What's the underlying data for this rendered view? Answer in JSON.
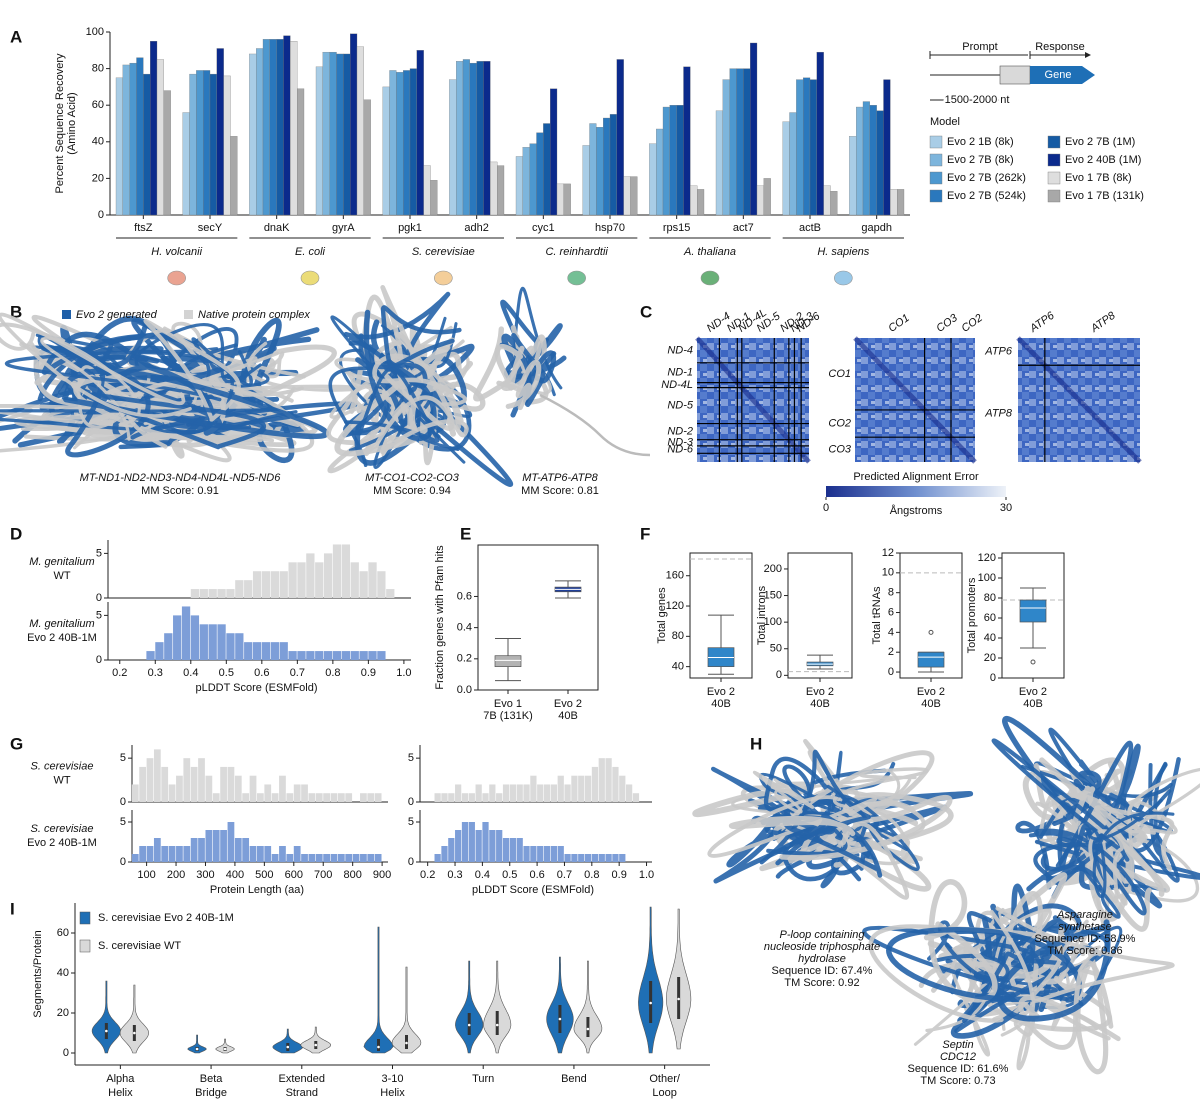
{
  "panel_labels": [
    "A",
    "B",
    "C",
    "D",
    "E",
    "F",
    "G",
    "H",
    "I"
  ],
  "panel_b": {
    "legend": [
      "Evo 2 generated",
      "Native protein complex"
    ],
    "structures": [
      {
        "name": "MT-ND1-ND2-ND3-ND4-ND4L-ND5-ND6",
        "score": "MM Score: 0.91"
      },
      {
        "name": "MT-CO1-CO2-CO3",
        "score": "MM Score: 0.94"
      },
      {
        "name": "MT-ATP6-ATP8",
        "score": "MM Score: 0.81"
      }
    ]
  },
  "panel_c": {
    "maps": [
      {
        "top": [
          "ND-4",
          "ND-1",
          "ND-4L",
          "ND-5",
          "ND-2",
          "ND-3",
          "ND-6"
        ],
        "left": [
          "ND-4",
          "ND-1",
          "ND-4L",
          "ND-5",
          "ND-2",
          "ND-3",
          "ND-6"
        ]
      },
      {
        "top": [
          "CO1",
          "CO3",
          "CO2"
        ],
        "left": [
          "CO1",
          "CO2",
          "CO3"
        ]
      },
      {
        "top": [
          "ATP6",
          "ATP8"
        ],
        "left": [
          "ATP6",
          "ATP8"
        ]
      }
    ]
  },
  "panel_i": {
    "structures": [
      {
        "name": "P-loop containing\nnucleoside triphosphate\nhydrolase",
        "sequence_id": "Sequence ID: 67.4%",
        "score": "TM Score: 0.92"
      },
      {
        "name": "Asparagine\nsynthetase",
        "sequence_id": "Sequence ID: 58.9%",
        "score": "TM Score: 0.86"
      },
      {
        "name": "Septin\nCDC12",
        "sequence_id": "Sequence ID: 61.6%",
        "score": "TM Score: 0.73"
      }
    ]
  },
  "chart_data": [
    {
      "type": "bar",
      "ylabel": "Percent Sequence Recovery\n(Amino Acid)",
      "categories": [
        "ftsZ",
        "secY",
        "dnaK",
        "gyrA",
        "pgk1",
        "adh2",
        "cyc1",
        "hsp70",
        "rps15",
        "act7",
        "actB",
        "gapdh"
      ],
      "groups": [
        "H. volcanii",
        "E. coli",
        "S. cerevisiae",
        "C. reinhardtii",
        "A. thaliana",
        "H. sapiens"
      ],
      "ylim": [
        0,
        100
      ],
      "yticks": [
        0,
        20,
        40,
        60,
        80,
        100
      ],
      "legend_title": "Model",
      "schematic": {
        "prompt": "Prompt",
        "response": "Response",
        "gene": "Gene",
        "length": "1500-2000 nt"
      },
      "series": [
        {
          "name": "Evo 2 1B (8k)",
          "color": "#a9cde6",
          "values": [
            75,
            56,
            88,
            81,
            70,
            74,
            32,
            38,
            39,
            57,
            51,
            43
          ]
        },
        {
          "name": "Evo 2 7B (8k)",
          "color": "#7db5dc",
          "values": [
            82,
            77,
            91,
            89,
            79,
            84,
            37,
            50,
            47,
            74,
            56,
            59
          ]
        },
        {
          "name": "Evo 2 7B (262k)",
          "color": "#4d98cf",
          "values": [
            83,
            79,
            96,
            89,
            78,
            85,
            39,
            48,
            59,
            80,
            74,
            62
          ]
        },
        {
          "name": "Evo 2 7B (524k)",
          "color": "#2a78bd",
          "values": [
            86,
            79,
            96,
            88,
            79,
            83,
            45,
            53,
            60,
            80,
            75,
            60
          ]
        },
        {
          "name": "Evo 2 7B (1M)",
          "color": "#165ba4",
          "values": [
            77,
            77,
            96,
            88,
            80,
            84,
            50,
            55,
            60,
            80,
            74,
            57
          ]
        },
        {
          "name": "Evo 2 40B (1M)",
          "color": "#0b2a8c",
          "values": [
            95,
            91,
            98,
            99,
            90,
            84,
            69,
            85,
            81,
            94,
            89,
            74
          ]
        },
        {
          "name": "Evo 1 7B (8k)",
          "color": "#dedede",
          "values": [
            85,
            76,
            95,
            92,
            27,
            29,
            17,
            21,
            16,
            16,
            16,
            14
          ]
        },
        {
          "name": "Evo 1  7B (131k)",
          "color": "#a8a8a8",
          "values": [
            68,
            43,
            69,
            63,
            19,
            27,
            17,
            21,
            14,
            20,
            13,
            14
          ]
        }
      ]
    },
    {
      "type": "histogram",
      "label": "M. genitalium\nWT",
      "color": "#dadada",
      "bins": [
        0.25,
        0.275,
        0.3,
        0.325,
        0.35,
        0.375,
        0.4,
        0.425,
        0.45,
        0.475,
        0.5,
        0.525,
        0.55,
        0.575,
        0.6,
        0.625,
        0.65,
        0.675,
        0.7,
        0.725,
        0.75,
        0.775,
        0.8,
        0.825,
        0.85,
        0.875,
        0.9,
        0.925,
        0.95,
        0.975
      ],
      "values": [
        0,
        0,
        0,
        0,
        0,
        0,
        1,
        1,
        1,
        1,
        1,
        2,
        2,
        3,
        3,
        3,
        3,
        4,
        4,
        5,
        4,
        5,
        6,
        6,
        4,
        3,
        4,
        3,
        1
      ],
      "xlim": [
        0.15,
        1.02
      ],
      "ylim": [
        0,
        6.5
      ],
      "yticks": [
        0,
        5
      ]
    },
    {
      "type": "histogram",
      "label": "M. genitalium\nEvo 2 40B-1M",
      "color": "#7d9ed8",
      "bins": [
        0.25,
        0.275,
        0.3,
        0.325,
        0.35,
        0.375,
        0.4,
        0.425,
        0.45,
        0.475,
        0.5,
        0.525,
        0.55,
        0.575,
        0.6,
        0.625,
        0.65,
        0.675,
        0.7,
        0.725,
        0.75,
        0.775,
        0.8,
        0.825,
        0.85,
        0.875,
        0.9,
        0.925,
        0.95,
        0.975
      ],
      "values": [
        0,
        1,
        2,
        3,
        5,
        6,
        5,
        4,
        4,
        4,
        3,
        3,
        2,
        2,
        2,
        2,
        2,
        1,
        1,
        1,
        1,
        1,
        1,
        1,
        1,
        1,
        1,
        1,
        0
      ],
      "xlim": [
        0.15,
        1.02
      ],
      "ylim": [
        0,
        6.5
      ],
      "yticks": [
        0,
        5
      ],
      "xticks": [
        0.2,
        0.3,
        0.4,
        0.5,
        0.6,
        0.7,
        0.8,
        0.9,
        {
          "value": 1,
          "label": "1.0"
        }
      ],
      "xlabel": "pLDDT Score (ESMFold)"
    },
    {
      "type": "box",
      "ylabel": "Fraction genes with Pfam hits",
      "categories": [
        "Evo 1\n7B (131K)",
        "Evo 2\n40B"
      ],
      "colors": [
        "#b3b3b3",
        "#1f3f9a"
      ],
      "ylim": [
        0,
        0.93
      ],
      "yticks": [
        {
          "value": 0,
          "label": "0.0"
        },
        0.2,
        0.4,
        0.6
      ],
      "boxes": [
        {
          "whislo": 0.06,
          "q1": 0.15,
          "med": 0.19,
          "q3": 0.22,
          "whishi": 0.33,
          "outliers": []
        },
        {
          "whislo": 0.59,
          "q1": 0.63,
          "med": 0.645,
          "q3": 0.66,
          "whishi": 0.7,
          "outliers": []
        }
      ]
    },
    {
      "type": "box",
      "ylabel": "Total genes",
      "categories": [
        "Evo 2\n40B"
      ],
      "colors": [
        "#2f86c9"
      ],
      "ylim": [
        25,
        190
      ],
      "yticks": [
        40,
        80,
        120,
        160
      ],
      "reference": 182,
      "boxes": [
        {
          "whislo": 30,
          "q1": 40,
          "med": 52,
          "q3": 65,
          "whishi": 108,
          "outliers": []
        }
      ]
    },
    {
      "type": "box",
      "ylabel": "Total introns",
      "categories": [
        "Evo 2\n40B"
      ],
      "colors": [
        "#2f86c9"
      ],
      "ylim": [
        -5,
        230
      ],
      "yticks": [
        0,
        50,
        100,
        150,
        200
      ],
      "reference": 7,
      "boxes": [
        {
          "whislo": 12,
          "q1": 18,
          "med": 21,
          "q3": 25,
          "whishi": 38,
          "outliers": []
        }
      ]
    },
    {
      "type": "box",
      "ylabel": "Total tRNAs",
      "categories": [
        "Evo 2\n40B"
      ],
      "colors": [
        "#2f86c9"
      ],
      "ylim": [
        -0.6,
        12
      ],
      "yticks": [
        0,
        2,
        4,
        6,
        8,
        10,
        12
      ],
      "reference": 10,
      "boxes": [
        {
          "whislo": 0,
          "q1": 0.5,
          "med": 1.5,
          "q3": 2,
          "whishi": 2,
          "outliers": [
            4
          ]
        }
      ]
    },
    {
      "type": "box",
      "ylabel": "Total promoters",
      "categories": [
        "Evo 2\n40B"
      ],
      "colors": [
        "#2f86c9"
      ],
      "ylim": [
        0,
        125
      ],
      "yticks": [
        0,
        20,
        40,
        60,
        80,
        100,
        120
      ],
      "reference": 78,
      "boxes": [
        {
          "whislo": 30,
          "q1": 56,
          "med": 70,
          "q3": 78,
          "whishi": 90,
          "outliers": [
            16
          ]
        }
      ]
    },
    {
      "type": "histogram",
      "label": "S. cerevisiae\nWT",
      "color": "#dadada",
      "bins": [
        50,
        75,
        100,
        125,
        150,
        175,
        200,
        225,
        250,
        275,
        300,
        325,
        350,
        375,
        400,
        425,
        450,
        475,
        500,
        525,
        550,
        575,
        600,
        625,
        650,
        675,
        700,
        725,
        750,
        775,
        800,
        825,
        850,
        875,
        900
      ],
      "values": [
        2,
        4,
        5,
        6,
        4,
        2,
        3,
        5,
        4,
        5,
        3,
        1,
        4,
        4,
        3,
        1,
        3,
        1,
        2,
        1,
        3,
        1,
        2,
        2,
        1,
        1,
        1,
        1,
        1,
        1,
        0,
        1,
        1,
        1
      ],
      "xlim": [
        30,
        920
      ],
      "ylim": [
        0,
        6.5
      ],
      "yticks": [
        0,
        5
      ]
    },
    {
      "type": "histogram",
      "label": "S. cerevisiae\nEvo 2 40B-1M",
      "color": "#7d9ed8",
      "bins": [
        50,
        75,
        100,
        125,
        150,
        175,
        200,
        225,
        250,
        275,
        300,
        325,
        350,
        375,
        400,
        425,
        450,
        475,
        500,
        525,
        550,
        575,
        600,
        625,
        650,
        675,
        700,
        725,
        750,
        775,
        800,
        825,
        850,
        875,
        900
      ],
      "values": [
        1,
        2,
        2,
        3,
        2,
        2,
        2,
        2,
        3,
        3,
        4,
        4,
        4,
        5,
        3,
        3,
        2,
        2,
        2,
        1,
        2,
        1,
        2,
        1,
        1,
        1,
        1,
        1,
        1,
        1,
        1,
        1,
        1,
        1
      ],
      "xlim": [
        30,
        920
      ],
      "ylim": [
        0,
        6.5
      ],
      "yticks": [
        0,
        5
      ],
      "xticks": [
        100,
        200,
        300,
        400,
        500,
        600,
        700,
        800,
        900
      ],
      "xlabel": "Protein Length (aa)"
    },
    {
      "type": "histogram",
      "color": "#dadada",
      "bins": [
        0.2,
        0.225,
        0.25,
        0.275,
        0.3,
        0.325,
        0.35,
        0.375,
        0.4,
        0.425,
        0.45,
        0.475,
        0.5,
        0.525,
        0.55,
        0.575,
        0.6,
        0.625,
        0.65,
        0.675,
        0.7,
        0.725,
        0.75,
        0.775,
        0.8,
        0.825,
        0.85,
        0.875,
        0.9,
        0.925,
        0.95,
        0.975
      ],
      "values": [
        0,
        1,
        1,
        1,
        2,
        1,
        1,
        2,
        1,
        2,
        1,
        2,
        2,
        2,
        2,
        3,
        2,
        2,
        2,
        3,
        2,
        3,
        3,
        3,
        4,
        5,
        5,
        4,
        3,
        2,
        1
      ],
      "xlim": [
        0.15,
        1.02
      ],
      "ylim": [
        0,
        6.5
      ],
      "yticks": [
        0,
        5
      ]
    },
    {
      "type": "histogram",
      "color": "#7d9ed8",
      "bins": [
        0.2,
        0.225,
        0.25,
        0.275,
        0.3,
        0.325,
        0.35,
        0.375,
        0.4,
        0.425,
        0.45,
        0.475,
        0.5,
        0.525,
        0.55,
        0.575,
        0.6,
        0.625,
        0.65,
        0.675,
        0.7,
        0.725,
        0.75,
        0.775,
        0.8,
        0.825,
        0.85,
        0.875,
        0.9,
        0.925,
        0.95,
        0.975
      ],
      "values": [
        0,
        1,
        2,
        3,
        4,
        5,
        5,
        4,
        5,
        4,
        4,
        3,
        3,
        3,
        2,
        2,
        2,
        2,
        2,
        2,
        1,
        1,
        1,
        1,
        1,
        1,
        1,
        1,
        1,
        0,
        0
      ],
      "xlim": [
        0.15,
        1.02
      ],
      "ylim": [
        0,
        6.5
      ],
      "yticks": [
        0,
        5
      ],
      "xticks": [
        0.2,
        0.3,
        0.4,
        0.5,
        0.6,
        0.7,
        0.8,
        0.9,
        {
          "value": 1,
          "label": "1.0"
        }
      ],
      "xlabel": "pLDDT Score (ESMFold)"
    },
    {
      "type": "violin",
      "ylabel": "Segments/Protein",
      "categories": [
        "Alpha\nHelix",
        "Beta\nBridge",
        "Extended\nStrand",
        "3-10\nHelix",
        "Turn",
        "Bend",
        "Other/\nLoop"
      ],
      "ylim": [
        -6,
        75
      ],
      "yticks": [
        0,
        20,
        40,
        60
      ],
      "series": [
        {
          "name": "S. cerevisiae Evo 2 40B-1M",
          "color": "#1f6fb5",
          "stats": [
            {
              "min": 0,
              "q1": 7,
              "med": 11,
              "q3": 15,
              "max": 36
            },
            {
              "min": 0,
              "q1": 1,
              "med": 2,
              "q3": 3,
              "max": 9
            },
            {
              "min": 0,
              "q1": 1,
              "med": 3,
              "q3": 5,
              "max": 12
            },
            {
              "min": 0,
              "q1": 1,
              "med": 3,
              "q3": 7,
              "max": 63
            },
            {
              "min": 0,
              "q1": 9,
              "med": 14,
              "q3": 20,
              "max": 46
            },
            {
              "min": 0,
              "q1": 10,
              "med": 17,
              "q3": 24,
              "max": 48
            },
            {
              "min": 0,
              "q1": 15,
              "med": 25,
              "q3": 36,
              "max": 73
            }
          ]
        },
        {
          "name": "S. cerevisiae WT",
          "color": "#d9d9d9",
          "stats": [
            {
              "min": 0,
              "q1": 6,
              "med": 10,
              "q3": 14,
              "max": 34
            },
            {
              "min": 0,
              "q1": 1,
              "med": 2,
              "q3": 3,
              "max": 7
            },
            {
              "min": 0,
              "q1": 2,
              "med": 4,
              "q3": 6,
              "max": 13
            },
            {
              "min": 0,
              "q1": 2,
              "med": 5,
              "q3": 9,
              "max": 43
            },
            {
              "min": 0,
              "q1": 9,
              "med": 14,
              "q3": 21,
              "max": 46
            },
            {
              "min": 0,
              "q1": 8,
              "med": 12,
              "q3": 18,
              "max": 46
            },
            {
              "min": 2,
              "q1": 17,
              "med": 27,
              "q3": 38,
              "max": 72
            }
          ]
        }
      ]
    },
    {
      "type": "colorbar",
      "title": "Predicted Alignment Error",
      "label": "Ångstroms",
      "lim": [
        0,
        30
      ],
      "ticks": [
        0,
        30
      ]
    }
  ]
}
